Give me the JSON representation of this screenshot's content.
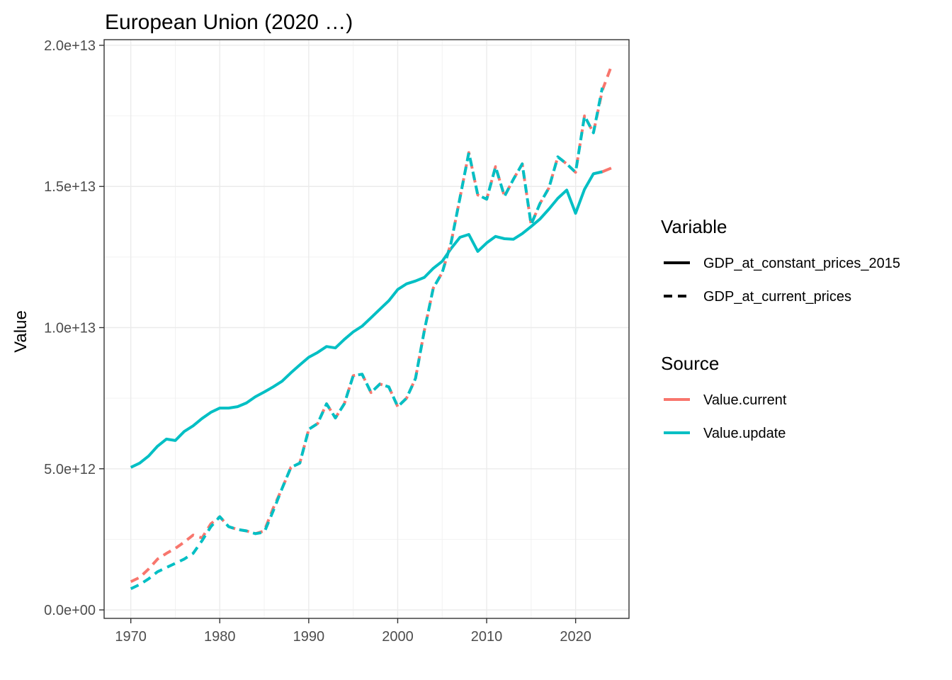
{
  "chart_data": {
    "type": "line",
    "title": "European Union (2020 …)",
    "xlabel": "",
    "ylabel": "Value",
    "xlim": [
      1967,
      2026
    ],
    "ylim": [
      -300000000000,
      20200000000000
    ],
    "x_ticks": [
      1970,
      1980,
      1990,
      2000,
      2010,
      2020
    ],
    "y_ticks": [
      0,
      5000000000000,
      10000000000000,
      15000000000000,
      20000000000000
    ],
    "y_tick_labels": [
      "0.0e+00",
      "5.0e+12",
      "1.0e+13",
      "1.5e+13",
      "2.0e+13"
    ],
    "grid": true,
    "legend_position": "right",
    "legend": {
      "variable_title": "Variable",
      "variables": [
        {
          "label": "GDP_at_constant_prices_2015",
          "dash": "solid"
        },
        {
          "label": "GDP_at_current_prices",
          "dash": "dashed"
        }
      ],
      "source_title": "Source",
      "sources": [
        {
          "label": "Value.current",
          "color": "#F8766D"
        },
        {
          "label": "Value.update",
          "color": "#00BFC4"
        }
      ]
    },
    "series": [
      {
        "variable": "GDP_at_constant_prices_2015",
        "source": "Value.current",
        "color": "#F8766D",
        "dash": "solid",
        "x": [
          2022,
          2023,
          2024
        ],
        "y": [
          15450000000000,
          15520000000000,
          15650000000000
        ]
      },
      {
        "variable": "GDP_at_constant_prices_2015",
        "source": "Value.update",
        "color": "#00BFC4",
        "dash": "solid",
        "x": [
          1970,
          1971,
          1972,
          1973,
          1974,
          1975,
          1976,
          1977,
          1978,
          1979,
          1980,
          1981,
          1982,
          1983,
          1984,
          1985,
          1986,
          1987,
          1988,
          1989,
          1990,
          1991,
          1992,
          1993,
          1994,
          1995,
          1996,
          1997,
          1998,
          1999,
          2000,
          2001,
          2002,
          2003,
          2004,
          2005,
          2006,
          2007,
          2008,
          2009,
          2010,
          2011,
          2012,
          2013,
          2014,
          2015,
          2016,
          2017,
          2018,
          2019,
          2020,
          2021,
          2022,
          2023
        ],
        "y": [
          5050000000000,
          5200000000000,
          5450000000000,
          5800000000000,
          6050000000000,
          6000000000000,
          6320000000000,
          6520000000000,
          6780000000000,
          7000000000000,
          7150000000000,
          7150000000000,
          7200000000000,
          7330000000000,
          7550000000000,
          7720000000000,
          7900000000000,
          8100000000000,
          8400000000000,
          8680000000000,
          8950000000000,
          9120000000000,
          9330000000000,
          9280000000000,
          9580000000000,
          9850000000000,
          10050000000000,
          10350000000000,
          10650000000000,
          10950000000000,
          11350000000000,
          11550000000000,
          11650000000000,
          11780000000000,
          12100000000000,
          12350000000000,
          12800000000000,
          13200000000000,
          13300000000000,
          12700000000000,
          13000000000000,
          13230000000000,
          13150000000000,
          13130000000000,
          13330000000000,
          13580000000000,
          13850000000000,
          14200000000000,
          14580000000000,
          14870000000000,
          14050000000000,
          14900000000000,
          15450000000000,
          15520000000000
        ]
      },
      {
        "variable": "GDP_at_current_prices",
        "source": "Value.current",
        "color": "#F8766D",
        "dash": "dashed",
        "x": [
          1970,
          1971,
          1972,
          1973,
          1974,
          1975,
          1976,
          1977,
          1978,
          1979,
          1980,
          1981,
          1982,
          1983,
          1984,
          1985,
          1986,
          1987,
          1988,
          1989,
          1990,
          1991,
          1992,
          1993,
          1994,
          1995,
          1996,
          1997,
          1998,
          1999,
          2000,
          2001,
          2002,
          2003,
          2004,
          2005,
          2006,
          2007,
          2008,
          2009,
          2010,
          2011,
          2012,
          2013,
          2014,
          2015,
          2016,
          2017,
          2018,
          2019,
          2020,
          2021,
          2022,
          2023,
          2024
        ],
        "y": [
          1000000000000,
          1150000000000,
          1450000000000,
          1800000000000,
          2000000000000,
          2180000000000,
          2400000000000,
          2650000000000,
          2550000000000,
          3050000000000,
          3300000000000,
          2950000000000,
          2850000000000,
          2800000000000,
          2700000000000,
          2800000000000,
          3600000000000,
          4300000000000,
          5050000000000,
          5200000000000,
          6400000000000,
          6600000000000,
          7300000000000,
          6800000000000,
          7300000000000,
          8300000000000,
          8350000000000,
          7700000000000,
          8000000000000,
          7900000000000,
          7200000000000,
          7500000000000,
          8200000000000,
          9900000000000,
          11400000000000,
          11950000000000,
          13000000000000,
          14600000000000,
          16200000000000,
          14700000000000,
          14550000000000,
          15700000000000,
          14650000000000,
          15250000000000,
          15800000000000,
          13650000000000,
          14400000000000,
          14950000000000,
          16050000000000,
          15800000000000,
          15500000000000,
          17500000000000,
          16900000000000,
          18400000000000,
          19250000000000
        ]
      },
      {
        "variable": "GDP_at_current_prices",
        "source": "Value.update",
        "color": "#00BFC4",
        "dash": "dashed",
        "x": [
          1970,
          1971,
          1972,
          1973,
          1974,
          1975,
          1976,
          1977,
          1978,
          1979,
          1980,
          1981,
          1982,
          1983,
          1984,
          1985,
          1986,
          1987,
          1988,
          1989,
          1990,
          1991,
          1992,
          1993,
          1994,
          1995,
          1996,
          1997,
          1998,
          1999,
          2000,
          2001,
          2002,
          2003,
          2004,
          2005,
          2006,
          2007,
          2008,
          2009,
          2010,
          2011,
          2012,
          2013,
          2014,
          2015,
          2016,
          2017,
          2018,
          2019,
          2020,
          2021,
          2022,
          2023
        ],
        "y": [
          750000000000,
          900000000000,
          1100000000000,
          1350000000000,
          1500000000000,
          1650000000000,
          1800000000000,
          2000000000000,
          2450000000000,
          2950000000000,
          3300000000000,
          2950000000000,
          2850000000000,
          2800000000000,
          2700000000000,
          2750000000000,
          3500000000000,
          4300000000000,
          5050000000000,
          5200000000000,
          6400000000000,
          6600000000000,
          7300000000000,
          6800000000000,
          7300000000000,
          8300000000000,
          8350000000000,
          7700000000000,
          8000000000000,
          7900000000000,
          7200000000000,
          7500000000000,
          8200000000000,
          9900000000000,
          11400000000000,
          11950000000000,
          13000000000000,
          14600000000000,
          16200000000000,
          14700000000000,
          14550000000000,
          15700000000000,
          14650000000000,
          15250000000000,
          15800000000000,
          13650000000000,
          14400000000000,
          14950000000000,
          16050000000000,
          15800000000000,
          15500000000000,
          17500000000000,
          16900000000000,
          18500000000000
        ]
      }
    ]
  }
}
